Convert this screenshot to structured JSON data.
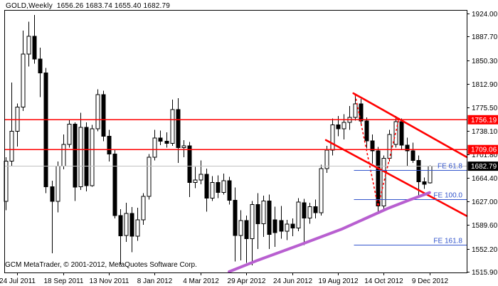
{
  "header": {
    "title": "GOLD,Weekly  1656.26 1683.74 1655.40 1682.79",
    "symbol": "GOLD",
    "timeframe": "Weekly",
    "ohlc_readout": {
      "open": "1656.26",
      "high": "1683.74",
      "low": "1655.40",
      "close": "1682.79"
    }
  },
  "footer": {
    "text": "GCM MetaTrader, © 2001-2012, MetaQuotes Software Corp."
  },
  "colors": {
    "background": "#ffffff",
    "frame": "#000000",
    "bull_candle": "#ffffff",
    "bear_candle": "#000000",
    "level_line": "#ff0000",
    "channel_line": "#ff0000",
    "current_price_line": "#c0c0c0",
    "current_price_badge": "#000000",
    "fibo": "#3355cc",
    "ma_curve": "#b85fd0",
    "badge_text": "#ffffff"
  },
  "chart_data": {
    "type": "candlestick",
    "title": "GOLD Weekly",
    "legend_position": "none",
    "grid": false,
    "y_axis": {
      "side": "right",
      "ticks": [
        "1924.00",
        "1887.70",
        "1850.30",
        "1812.90",
        "1775.50",
        "1738.10",
        "1701.80",
        "1664.40",
        "1627.00",
        "1589.60",
        "1552.20",
        "1515.90"
      ],
      "range": [
        1515.9,
        1924.0
      ]
    },
    "x_axis": {
      "ticks": [
        {
          "label": "24 Jul 2011",
          "week": 2
        },
        {
          "label": "18 Sep 2011",
          "week": 10
        },
        {
          "label": "13 Nov 2011",
          "week": 18
        },
        {
          "label": "8 Jan 2012",
          "week": 26
        },
        {
          "label": "4 Mar 2012",
          "week": 34
        },
        {
          "label": "29 Apr 2012",
          "week": 42
        },
        {
          "label": "24 Jun 2012",
          "week": 50
        },
        {
          "label": "19 Aug 2012",
          "week": 58
        },
        {
          "label": "14 Oct 2012",
          "week": 66
        },
        {
          "label": "9 Dec 2012",
          "week": 74
        }
      ]
    },
    "price_lines": [
      {
        "label": "1756.19",
        "price": 1756.19
      },
      {
        "label": "1709.06",
        "price": 1709.06
      }
    ],
    "current_price": {
      "label": "1682.79",
      "price": 1682.79
    },
    "fib_expansion": {
      "levels": [
        {
          "label": "FE 61.8",
          "price": 1677
        },
        {
          "label": "FE 100.0",
          "price": 1631
        },
        {
          "label": "FE 161.8",
          "price": 1559
        }
      ],
      "start_week": 60.8,
      "zigzag": [
        {
          "week": 61.0,
          "price": 1796
        },
        {
          "week": 65.0,
          "price": 1619
        },
        {
          "week": 68.7,
          "price": 1759
        }
      ]
    },
    "channel": {
      "upper": {
        "w1": 60.7,
        "p1": 1798,
        "w2": 80.5,
        "p2": 1697
      },
      "lower": {
        "w1": 55.9,
        "p1": 1724,
        "w2": 80.5,
        "p2": 1604
      }
    },
    "ma_curve": {
      "points": [
        {
          "week": 39.0,
          "price": 1516
        },
        {
          "week": 43.7,
          "price": 1533
        },
        {
          "week": 51.2,
          "price": 1558
        },
        {
          "week": 58.6,
          "price": 1583
        },
        {
          "week": 66.7,
          "price": 1616
        },
        {
          "week": 70.4,
          "price": 1629
        },
        {
          "week": 74.0,
          "price": 1641
        }
      ]
    },
    "candles": [
      [
        "2011-07-10",
        1627,
        1697,
        1613,
        1691
      ],
      [
        "2011-07-17",
        1691,
        1815,
        1683,
        1738
      ],
      [
        "2011-07-24",
        1738,
        1782,
        1714,
        1776
      ],
      [
        "2011-07-31",
        1776,
        1897,
        1770,
        1860
      ],
      [
        "2011-08-07",
        1860,
        1911,
        1840,
        1888
      ],
      [
        "2011-08-14",
        1888,
        1922,
        1845,
        1852
      ],
      [
        "2011-08-21",
        1852,
        1870,
        1792,
        1830
      ],
      [
        "2011-08-28",
        1830,
        1838,
        1640,
        1650
      ],
      [
        "2011-09-04",
        1650,
        1660,
        1545,
        1627
      ],
      [
        "2011-09-11",
        1627,
        1690,
        1610,
        1683
      ],
      [
        "2011-09-18",
        1683,
        1733,
        1678,
        1717
      ],
      [
        "2011-09-25",
        1717,
        1757,
        1712,
        1749
      ],
      [
        "2011-10-02",
        1749,
        1752,
        1628,
        1650
      ],
      [
        "2011-10-09",
        1650,
        1767,
        1645,
        1744
      ],
      [
        "2011-10-16",
        1744,
        1752,
        1643,
        1652
      ],
      [
        "2011-10-23",
        1652,
        1748,
        1650,
        1742
      ],
      [
        "2011-10-30",
        1742,
        1804,
        1738,
        1796
      ],
      [
        "2011-11-06",
        1796,
        1802,
        1722,
        1730
      ],
      [
        "2011-11-13",
        1730,
        1740,
        1690,
        1702
      ],
      [
        "2011-11-20",
        1702,
        1710,
        1600,
        1605
      ],
      [
        "2011-11-27",
        1605,
        1615,
        1527,
        1573
      ],
      [
        "2011-12-04",
        1573,
        1625,
        1563,
        1608
      ],
      [
        "2011-12-11",
        1608,
        1618,
        1547,
        1572
      ],
      [
        "2011-12-18",
        1572,
        1617,
        1565,
        1598
      ],
      [
        "2011-12-25",
        1598,
        1640,
        1590,
        1635
      ],
      [
        "2012-01-01",
        1635,
        1702,
        1630,
        1697
      ],
      [
        "2012-01-08",
        1697,
        1740,
        1692,
        1727
      ],
      [
        "2012-01-15",
        1727,
        1739,
        1716,
        1722
      ],
      [
        "2012-01-22",
        1722,
        1736,
        1712,
        1719
      ],
      [
        "2012-01-29",
        1719,
        1788,
        1715,
        1772
      ],
      [
        "2012-02-05",
        1772,
        1790,
        1688,
        1712
      ],
      [
        "2012-02-12",
        1712,
        1724,
        1697,
        1715
      ],
      [
        "2012-02-19",
        1715,
        1721,
        1634,
        1657
      ],
      [
        "2012-02-26",
        1657,
        1682,
        1648,
        1661
      ],
      [
        "2012-03-04",
        1661,
        1692,
        1654,
        1670
      ],
      [
        "2012-03-11",
        1670,
        1679,
        1611,
        1632
      ],
      [
        "2012-03-18",
        1632,
        1667,
        1628,
        1657
      ],
      [
        "2012-03-25",
        1657,
        1668,
        1632,
        1641
      ],
      [
        "2012-04-01",
        1641,
        1671,
        1638,
        1660
      ],
      [
        "2012-04-08",
        1660,
        1666,
        1622,
        1629
      ],
      [
        "2012-04-15",
        1629,
        1649,
        1532,
        1573
      ],
      [
        "2012-04-22",
        1573,
        1613,
        1534,
        1597
      ],
      [
        "2012-04-29",
        1597,
        1605,
        1530,
        1568
      ],
      [
        "2012-05-06",
        1568,
        1628,
        1526,
        1622
      ],
      [
        "2012-05-13",
        1622,
        1640,
        1552,
        1592
      ],
      [
        "2012-05-20",
        1592,
        1636,
        1571,
        1628
      ],
      [
        "2012-05-27",
        1628,
        1638,
        1552,
        1575
      ],
      [
        "2012-06-03",
        1598,
        1619,
        1555,
        1578
      ],
      [
        "2012-06-10",
        1597,
        1620,
        1568,
        1580
      ],
      [
        "2012-06-17",
        1580,
        1598,
        1566,
        1591
      ],
      [
        "2012-06-24",
        1591,
        1600,
        1572,
        1585
      ],
      [
        "2012-07-01",
        1585,
        1632,
        1580,
        1626
      ],
      [
        "2012-07-08",
        1625,
        1631,
        1558,
        1601
      ],
      [
        "2012-07-15",
        1601,
        1625,
        1592,
        1619
      ],
      [
        "2012-07-22",
        1619,
        1630,
        1600,
        1609
      ],
      [
        "2012-07-29",
        1609,
        1685,
        1605,
        1679
      ],
      [
        "2012-08-05",
        1679,
        1715,
        1672,
        1708
      ],
      [
        "2012-08-12",
        1708,
        1758,
        1700,
        1748
      ],
      [
        "2012-08-19",
        1748,
        1762,
        1730,
        1742
      ],
      [
        "2012-08-26",
        1742,
        1765,
        1725,
        1752
      ],
      [
        "2012-09-02",
        1752,
        1778,
        1740,
        1760
      ],
      [
        "2012-09-09",
        1760,
        1796,
        1755,
        1781
      ],
      [
        "2012-09-16",
        1781,
        1789,
        1748,
        1754
      ],
      [
        "2012-09-23",
        1754,
        1760,
        1711,
        1723
      ],
      [
        "2012-09-30",
        1723,
        1733,
        1687,
        1707
      ],
      [
        "2012-10-07",
        1707,
        1713,
        1608,
        1620
      ],
      [
        "2012-10-14",
        1620,
        1700,
        1615,
        1695
      ],
      [
        "2012-10-21",
        1695,
        1740,
        1690,
        1733
      ],
      [
        "2012-10-28",
        1717,
        1762,
        1712,
        1753
      ],
      [
        "2012-11-04",
        1753,
        1758,
        1708,
        1716
      ],
      [
        "2012-11-11",
        1716,
        1728,
        1683,
        1707
      ],
      [
        "2012-11-18",
        1707,
        1720,
        1688,
        1692
      ],
      [
        "2012-11-25",
        1692,
        1700,
        1637,
        1658
      ],
      [
        "2012-12-02",
        1658,
        1665,
        1647,
        1654
      ],
      [
        "2012-12-09",
        1656.26,
        1683.74,
        1655.4,
        1682.79
      ]
    ]
  }
}
